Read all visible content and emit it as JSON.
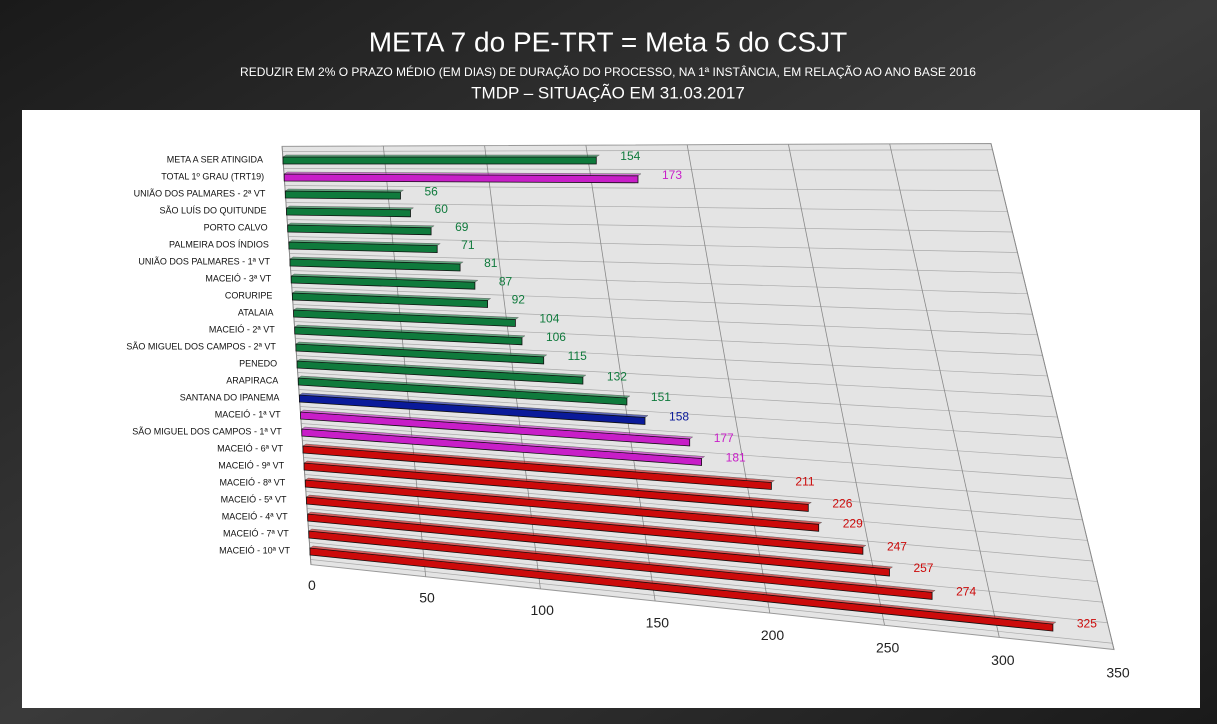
{
  "chart_data": {
    "type": "bar",
    "title": "META 7 do PE-TRT = Meta 5 do CSJT",
    "subtitle": "REDUZIR EM 2% O PRAZO MÉDIO (EM DIAS) DE DURAÇÃO DO PROCESSO, NA 1ª INSTÂNCIA, EM RELAÇÃO AO ANO BASE 2016",
    "subtitle2": "TMDP – SITUAÇÃO EM 31.03.2017",
    "categories": [
      "META A SER ATINGIDA",
      "TOTAL 1º GRAU (TRT19)",
      "UNIÃO DOS PALMARES - 2ª VT",
      "SÃO LUÍS DO QUITUNDE",
      "PORTO CALVO",
      "PALMEIRA DOS ÍNDIOS",
      "UNIÃO DOS PALMARES - 1ª VT",
      "MACEIÓ - 3ª VT",
      "CORURIPE",
      "ATALAIA",
      "MACEIÓ - 2ª VT",
      "SÃO MIGUEL DOS CAMPOS - 2ª VT",
      "PENEDO",
      "ARAPIRACA",
      "SANTANA DO IPANEMA",
      "MACEIÓ - 1ª VT",
      "SÃO MIGUEL DOS CAMPOS - 1ª VT",
      "MACEIÓ - 6ª VT",
      "MACEIÓ - 9ª VT",
      "MACEIÓ - 8ª VT",
      "MACEIÓ - 5ª VT",
      "MACEIÓ - 4ª VT",
      "MACEIÓ - 7ª VT",
      "MACEIÓ - 10ª VT"
    ],
    "values": [
      154,
      173,
      56,
      60,
      69,
      71,
      81,
      87,
      92,
      104,
      106,
      115,
      132,
      151,
      158,
      177,
      181,
      211,
      226,
      229,
      247,
      257,
      274,
      325
    ],
    "colors": [
      "#0f7a3c",
      "#c81ec8",
      "#0f7a3c",
      "#0f7a3c",
      "#0f7a3c",
      "#0f7a3c",
      "#0f7a3c",
      "#0f7a3c",
      "#0f7a3c",
      "#0f7a3c",
      "#0f7a3c",
      "#0f7a3c",
      "#0f7a3c",
      "#0f7a3c",
      "#0a1a9a",
      "#c81ec8",
      "#c81ec8",
      "#cc0a0a",
      "#cc0a0a",
      "#cc0a0a",
      "#cc0a0a",
      "#cc0a0a",
      "#cc0a0a",
      "#cc0a0a"
    ],
    "xlim": [
      0,
      350
    ],
    "xticks": [
      0,
      50,
      100,
      150,
      200,
      250,
      300,
      350
    ],
    "grid": true
  }
}
